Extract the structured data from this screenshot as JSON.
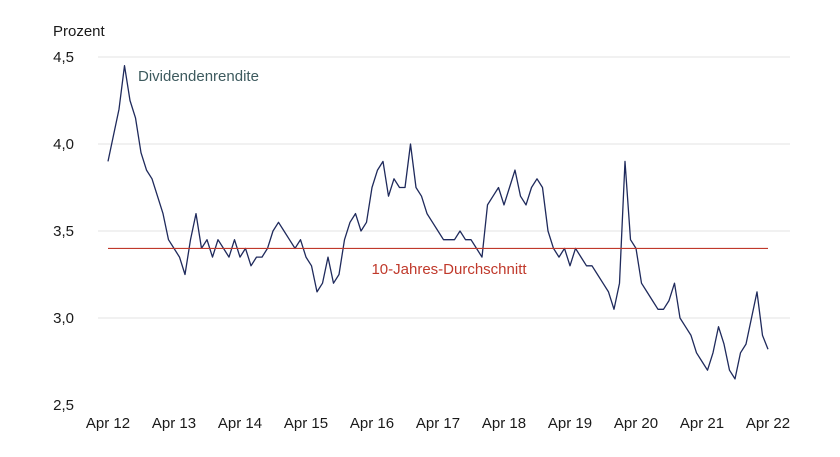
{
  "chart_data": {
    "type": "line",
    "ylabel": "Prozent",
    "ylim": [
      2.5,
      4.5
    ],
    "y_ticks": [
      {
        "value": 4.5,
        "label": "4,5"
      },
      {
        "value": 4.0,
        "label": "4,0"
      },
      {
        "value": 3.5,
        "label": "3,5"
      },
      {
        "value": 3.0,
        "label": "3,0"
      },
      {
        "value": 2.5,
        "label": "2,5"
      }
    ],
    "xlim": [
      "2012-04",
      "2022-04"
    ],
    "x_ticks": [
      {
        "value": "2012-04",
        "label": "Apr 12"
      },
      {
        "value": "2013-04",
        "label": "Apr 13"
      },
      {
        "value": "2014-04",
        "label": "Apr 14"
      },
      {
        "value": "2015-04",
        "label": "Apr 15"
      },
      {
        "value": "2016-04",
        "label": "Apr 16"
      },
      {
        "value": "2017-04",
        "label": "Apr 17"
      },
      {
        "value": "2018-04",
        "label": "Apr 18"
      },
      {
        "value": "2019-04",
        "label": "Apr 19"
      },
      {
        "value": "2020-04",
        "label": "Apr 20"
      },
      {
        "value": "2021-04",
        "label": "Apr 21"
      },
      {
        "value": "2022-04",
        "label": "Apr 22"
      }
    ],
    "grid": "horizontal",
    "series": [
      {
        "name": "Dividendenrendite",
        "color": "#1f2a5c",
        "label_color": "#3d5a5e",
        "x": [
          "2012-04",
          "2012-05",
          "2012-06",
          "2012-07",
          "2012-08",
          "2012-09",
          "2012-10",
          "2012-11",
          "2012-12",
          "2013-01",
          "2013-02",
          "2013-03",
          "2013-04",
          "2013-05",
          "2013-06",
          "2013-07",
          "2013-08",
          "2013-09",
          "2013-10",
          "2013-11",
          "2013-12",
          "2014-01",
          "2014-02",
          "2014-03",
          "2014-04",
          "2014-05",
          "2014-06",
          "2014-07",
          "2014-08",
          "2014-09",
          "2014-10",
          "2014-11",
          "2014-12",
          "2015-01",
          "2015-02",
          "2015-03",
          "2015-04",
          "2015-05",
          "2015-06",
          "2015-07",
          "2015-08",
          "2015-09",
          "2015-10",
          "2015-11",
          "2015-12",
          "2016-01",
          "2016-02",
          "2016-03",
          "2016-04",
          "2016-05",
          "2016-06",
          "2016-07",
          "2016-08",
          "2016-09",
          "2016-10",
          "2016-11",
          "2016-12",
          "2017-01",
          "2017-02",
          "2017-03",
          "2017-04",
          "2017-05",
          "2017-06",
          "2017-07",
          "2017-08",
          "2017-09",
          "2017-10",
          "2017-11",
          "2017-12",
          "2018-01",
          "2018-02",
          "2018-03",
          "2018-04",
          "2018-05",
          "2018-06",
          "2018-07",
          "2018-08",
          "2018-09",
          "2018-10",
          "2018-11",
          "2018-12",
          "2019-01",
          "2019-02",
          "2019-03",
          "2019-04",
          "2019-05",
          "2019-06",
          "2019-07",
          "2019-08",
          "2019-09",
          "2019-10",
          "2019-11",
          "2019-12",
          "2020-01",
          "2020-02",
          "2020-03",
          "2020-04",
          "2020-05",
          "2020-06",
          "2020-07",
          "2020-08",
          "2020-09",
          "2020-10",
          "2020-11",
          "2020-12",
          "2021-01",
          "2021-02",
          "2021-03",
          "2021-04",
          "2021-05",
          "2021-06",
          "2021-07",
          "2021-08",
          "2021-09",
          "2021-10",
          "2021-11",
          "2021-12",
          "2022-01",
          "2022-02",
          "2022-03",
          "2022-04"
        ],
        "y": [
          3.9,
          4.05,
          4.2,
          4.45,
          4.25,
          4.15,
          3.95,
          3.85,
          3.8,
          3.7,
          3.6,
          3.45,
          3.4,
          3.35,
          3.25,
          3.45,
          3.6,
          3.4,
          3.45,
          3.35,
          3.45,
          3.4,
          3.35,
          3.45,
          3.35,
          3.4,
          3.3,
          3.35,
          3.35,
          3.4,
          3.5,
          3.55,
          3.5,
          3.45,
          3.4,
          3.45,
          3.35,
          3.3,
          3.15,
          3.2,
          3.35,
          3.2,
          3.25,
          3.45,
          3.55,
          3.6,
          3.5,
          3.55,
          3.75,
          3.85,
          3.9,
          3.7,
          3.8,
          3.75,
          3.75,
          4.0,
          3.75,
          3.7,
          3.6,
          3.55,
          3.5,
          3.45,
          3.45,
          3.45,
          3.5,
          3.45,
          3.45,
          3.4,
          3.35,
          3.65,
          3.7,
          3.75,
          3.65,
          3.75,
          3.85,
          3.7,
          3.65,
          3.75,
          3.8,
          3.75,
          3.5,
          3.4,
          3.35,
          3.4,
          3.3,
          3.4,
          3.35,
          3.3,
          3.3,
          3.25,
          3.2,
          3.15,
          3.05,
          3.2,
          3.9,
          3.45,
          3.4,
          3.2,
          3.15,
          3.1,
          3.05,
          3.05,
          3.1,
          3.2,
          3.0,
          2.95,
          2.9,
          2.8,
          2.75,
          2.7,
          2.8,
          2.95,
          2.85,
          2.7,
          2.65,
          2.8,
          2.85,
          3.0,
          3.15,
          2.9,
          2.82
        ]
      },
      {
        "name": "10-Jahres-Durchschnitt",
        "color": "#c0392b",
        "label_color": "#c0392b",
        "x": [
          "2012-04",
          "2022-04"
        ],
        "y": [
          3.4,
          3.4
        ]
      }
    ]
  }
}
